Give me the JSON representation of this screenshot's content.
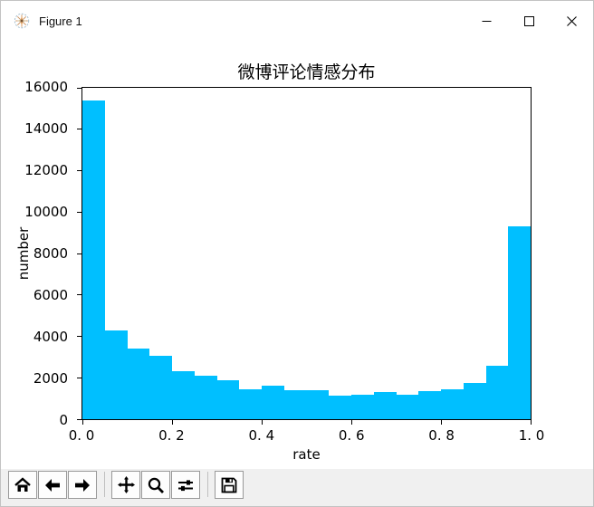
{
  "window": {
    "title": "Figure 1"
  },
  "chart_data": {
    "type": "bar",
    "kind": "histogram",
    "title": "微博评论情感分布",
    "xlabel": "rate",
    "ylabel": "number",
    "bar_color": "#00BFFF",
    "axis_color": "#000000",
    "grid": false,
    "legend_position": "none",
    "xlim": [
      0.0,
      1.0
    ],
    "ylim": [
      0,
      16000
    ],
    "bin_start": 0.0,
    "bin_width": 0.05,
    "values": [
      15400,
      4300,
      3400,
      3050,
      2330,
      2080,
      1890,
      1450,
      1600,
      1380,
      1380,
      1130,
      1160,
      1300,
      1180,
      1350,
      1450,
      1750,
      2570,
      9300
    ],
    "x_tick_values": [
      0.0,
      0.2,
      0.4,
      0.6,
      0.8,
      1.0
    ],
    "x_tick_labels": [
      "0. 0",
      "0. 2",
      "0. 4",
      "0. 6",
      "0. 8",
      "1. 0"
    ],
    "y_tick_values": [
      0,
      2000,
      4000,
      6000,
      8000,
      10000,
      12000,
      14000,
      16000
    ],
    "y_tick_labels": [
      "0",
      "2000",
      "4000",
      "6000",
      "8000",
      "10000",
      "12000",
      "14000",
      "16000"
    ]
  },
  "toolbar": {
    "buttons": [
      {
        "name": "home",
        "icon": "home-icon"
      },
      {
        "name": "back",
        "icon": "arrow-left-icon"
      },
      {
        "name": "forward",
        "icon": "arrow-right-icon"
      },
      {
        "name": "pan",
        "icon": "move-icon"
      },
      {
        "name": "zoom",
        "icon": "magnifier-icon"
      },
      {
        "name": "configure-subplots",
        "icon": "sliders-icon"
      },
      {
        "name": "save",
        "icon": "floppy-icon"
      }
    ]
  }
}
